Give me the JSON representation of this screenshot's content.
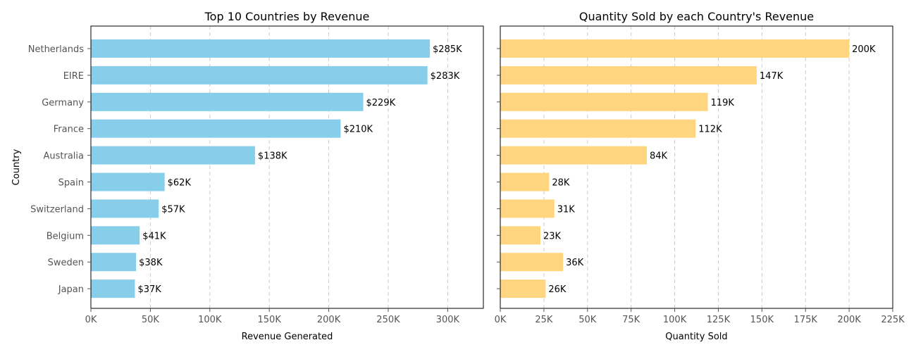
{
  "chart_data": [
    {
      "type": "bar",
      "orientation": "horizontal",
      "title": "Top 10 Countries by Revenue",
      "xlabel": "Revenue Generated",
      "ylabel": "Country",
      "categories": [
        "Netherlands",
        "EIRE",
        "Germany",
        "France",
        "Australia",
        "Spain",
        "Switzerland",
        "Belgium",
        "Sweden",
        "Japan"
      ],
      "values": [
        285000,
        283000,
        229000,
        210000,
        138000,
        62000,
        57000,
        41000,
        38000,
        37000
      ],
      "data_labels": [
        "$285K",
        "$283K",
        "$229K",
        "$210K",
        "$138K",
        "$62K",
        "$57K",
        "$41K",
        "$38K",
        "$37K"
      ],
      "xlim": [
        0,
        330000
      ],
      "xticks": [
        0,
        50000,
        100000,
        150000,
        200000,
        250000,
        300000
      ],
      "xtick_labels": [
        "0K",
        "50K",
        "100K",
        "150K",
        "200K",
        "250K",
        "300K"
      ],
      "grid": "x-dashed",
      "color": "#87ceeb"
    },
    {
      "type": "bar",
      "orientation": "horizontal",
      "title": "Quantity Sold by each Country's Revenue",
      "xlabel": "Quantity Sold",
      "ylabel": "",
      "categories": [
        "Netherlands",
        "EIRE",
        "Germany",
        "France",
        "Australia",
        "Spain",
        "Switzerland",
        "Belgium",
        "Sweden",
        "Japan"
      ],
      "values": [
        200000,
        147000,
        119000,
        112000,
        84000,
        28000,
        31000,
        23000,
        36000,
        26000
      ],
      "data_labels": [
        "200K",
        "147K",
        "119K",
        "112K",
        "84K",
        "28K",
        "31K",
        "23K",
        "36K",
        "26K"
      ],
      "xlim": [
        0,
        225000
      ],
      "xticks": [
        0,
        25000,
        50000,
        75000,
        100000,
        125000,
        150000,
        175000,
        200000,
        225000
      ],
      "xtick_labels": [
        "0K",
        "25K",
        "50K",
        "75K",
        "100K",
        "125K",
        "150K",
        "175K",
        "200K",
        "225K"
      ],
      "grid": "x-dashed",
      "color": "#ffd580"
    }
  ]
}
